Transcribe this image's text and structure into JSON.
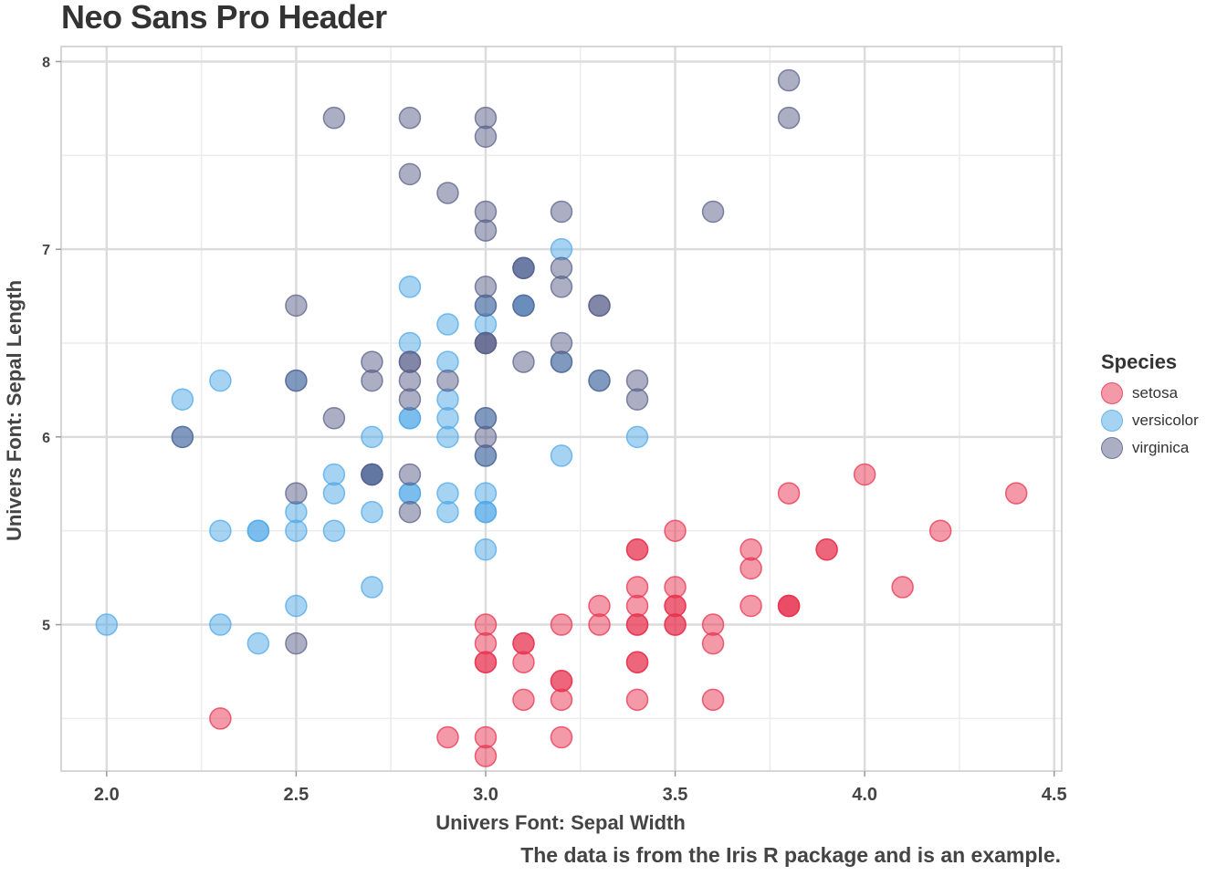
{
  "chart_data": {
    "type": "scatter",
    "title": "Neo Sans Pro Header",
    "xlabel": "Univers Font: Sepal Width",
    "ylabel": "Univers Font: Sepal Length",
    "caption": "The data is from the Iris R package and is an example.",
    "xlim": [
      1.88,
      4.52
    ],
    "ylim": [
      4.22,
      8.08
    ],
    "x_ticks": [
      "2.0",
      "2.5",
      "3.0",
      "3.5",
      "4.0",
      "4.5"
    ],
    "y_ticks": [
      "5",
      "6",
      "7",
      "8"
    ],
    "grid": true,
    "legend": {
      "title": "Species",
      "placement": "right"
    },
    "series": [
      {
        "name": "setosa",
        "color": "#E8334F",
        "points": [
          [
            3.5,
            5.1
          ],
          [
            3.0,
            4.9
          ],
          [
            3.2,
            4.7
          ],
          [
            3.1,
            4.6
          ],
          [
            3.6,
            5.0
          ],
          [
            3.9,
            5.4
          ],
          [
            3.4,
            4.6
          ],
          [
            3.4,
            5.0
          ],
          [
            2.9,
            4.4
          ],
          [
            3.1,
            4.9
          ],
          [
            3.7,
            5.4
          ],
          [
            3.4,
            4.8
          ],
          [
            3.0,
            4.8
          ],
          [
            3.0,
            4.3
          ],
          [
            4.0,
            5.8
          ],
          [
            4.4,
            5.7
          ],
          [
            3.9,
            5.4
          ],
          [
            3.5,
            5.1
          ],
          [
            3.8,
            5.7
          ],
          [
            3.8,
            5.1
          ],
          [
            3.4,
            5.4
          ],
          [
            3.7,
            5.1
          ],
          [
            3.6,
            4.6
          ],
          [
            3.3,
            5.1
          ],
          [
            3.4,
            4.8
          ],
          [
            3.0,
            5.0
          ],
          [
            3.4,
            5.0
          ],
          [
            3.5,
            5.2
          ],
          [
            3.4,
            5.2
          ],
          [
            3.2,
            4.7
          ],
          [
            3.1,
            4.8
          ],
          [
            3.4,
            5.4
          ],
          [
            4.1,
            5.2
          ],
          [
            4.2,
            5.5
          ],
          [
            3.1,
            4.9
          ],
          [
            3.2,
            5.0
          ],
          [
            3.5,
            5.5
          ],
          [
            3.6,
            4.9
          ],
          [
            3.0,
            4.4
          ],
          [
            3.4,
            5.1
          ],
          [
            3.5,
            5.0
          ],
          [
            2.3,
            4.5
          ],
          [
            3.2,
            4.4
          ],
          [
            3.5,
            5.0
          ],
          [
            3.8,
            5.1
          ],
          [
            3.0,
            4.8
          ],
          [
            3.8,
            5.1
          ],
          [
            3.2,
            4.6
          ],
          [
            3.7,
            5.3
          ],
          [
            3.3,
            5.0
          ]
        ]
      },
      {
        "name": "versicolor",
        "color": "#4FA8E8",
        "points": [
          [
            3.2,
            7.0
          ],
          [
            3.2,
            6.4
          ],
          [
            3.1,
            6.9
          ],
          [
            2.3,
            5.5
          ],
          [
            2.8,
            6.5
          ],
          [
            2.8,
            5.7
          ],
          [
            3.3,
            6.3
          ],
          [
            2.4,
            4.9
          ],
          [
            2.9,
            6.6
          ],
          [
            2.7,
            5.2
          ],
          [
            2.0,
            5.0
          ],
          [
            3.0,
            5.9
          ],
          [
            2.2,
            6.0
          ],
          [
            2.9,
            6.1
          ],
          [
            2.9,
            5.6
          ],
          [
            3.1,
            6.7
          ],
          [
            3.0,
            5.6
          ],
          [
            2.7,
            5.8
          ],
          [
            2.2,
            6.2
          ],
          [
            2.5,
            5.6
          ],
          [
            3.2,
            5.9
          ],
          [
            2.8,
            6.1
          ],
          [
            2.5,
            6.3
          ],
          [
            2.8,
            6.1
          ],
          [
            2.9,
            6.4
          ],
          [
            3.0,
            6.6
          ],
          [
            2.8,
            6.8
          ],
          [
            3.0,
            6.7
          ],
          [
            2.9,
            6.0
          ],
          [
            2.6,
            5.7
          ],
          [
            2.4,
            5.5
          ],
          [
            2.4,
            5.5
          ],
          [
            2.7,
            5.8
          ],
          [
            2.7,
            6.0
          ],
          [
            3.0,
            5.4
          ],
          [
            3.4,
            6.0
          ],
          [
            3.1,
            6.7
          ],
          [
            2.3,
            6.3
          ],
          [
            3.0,
            5.6
          ],
          [
            2.5,
            5.5
          ],
          [
            2.6,
            5.5
          ],
          [
            3.0,
            6.1
          ],
          [
            2.6,
            5.8
          ],
          [
            2.3,
            5.0
          ],
          [
            2.7,
            5.6
          ],
          [
            3.0,
            5.7
          ],
          [
            2.9,
            5.7
          ],
          [
            2.9,
            6.2
          ],
          [
            2.5,
            5.1
          ],
          [
            2.8,
            5.7
          ]
        ]
      },
      {
        "name": "virginica",
        "color": "#59608A",
        "points": [
          [
            3.3,
            6.3
          ],
          [
            2.7,
            5.8
          ],
          [
            3.0,
            7.1
          ],
          [
            2.9,
            6.3
          ],
          [
            3.0,
            6.5
          ],
          [
            3.0,
            7.6
          ],
          [
            2.5,
            4.9
          ],
          [
            2.9,
            7.3
          ],
          [
            2.5,
            6.7
          ],
          [
            3.6,
            7.2
          ],
          [
            3.2,
            6.5
          ],
          [
            2.7,
            6.4
          ],
          [
            3.0,
            6.8
          ],
          [
            2.5,
            5.7
          ],
          [
            2.8,
            5.8
          ],
          [
            3.2,
            6.4
          ],
          [
            3.0,
            6.5
          ],
          [
            3.8,
            7.7
          ],
          [
            2.6,
            7.7
          ],
          [
            2.2,
            6.0
          ],
          [
            3.2,
            6.9
          ],
          [
            2.8,
            5.6
          ],
          [
            2.8,
            7.7
          ],
          [
            2.7,
            6.3
          ],
          [
            3.3,
            6.7
          ],
          [
            3.2,
            7.2
          ],
          [
            2.8,
            6.2
          ],
          [
            3.0,
            6.1
          ],
          [
            2.8,
            6.4
          ],
          [
            3.0,
            7.2
          ],
          [
            2.8,
            7.4
          ],
          [
            3.8,
            7.9
          ],
          [
            2.8,
            6.4
          ],
          [
            2.8,
            6.3
          ],
          [
            2.6,
            6.1
          ],
          [
            3.0,
            7.7
          ],
          [
            3.4,
            6.3
          ],
          [
            3.1,
            6.4
          ],
          [
            3.0,
            6.0
          ],
          [
            3.1,
            6.9
          ],
          [
            3.1,
            6.7
          ],
          [
            3.1,
            6.9
          ],
          [
            2.7,
            5.8
          ],
          [
            3.2,
            6.8
          ],
          [
            3.3,
            6.7
          ],
          [
            3.0,
            6.7
          ],
          [
            2.5,
            6.3
          ],
          [
            3.0,
            6.5
          ],
          [
            3.4,
            6.2
          ],
          [
            3.0,
            5.9
          ]
        ]
      }
    ]
  }
}
